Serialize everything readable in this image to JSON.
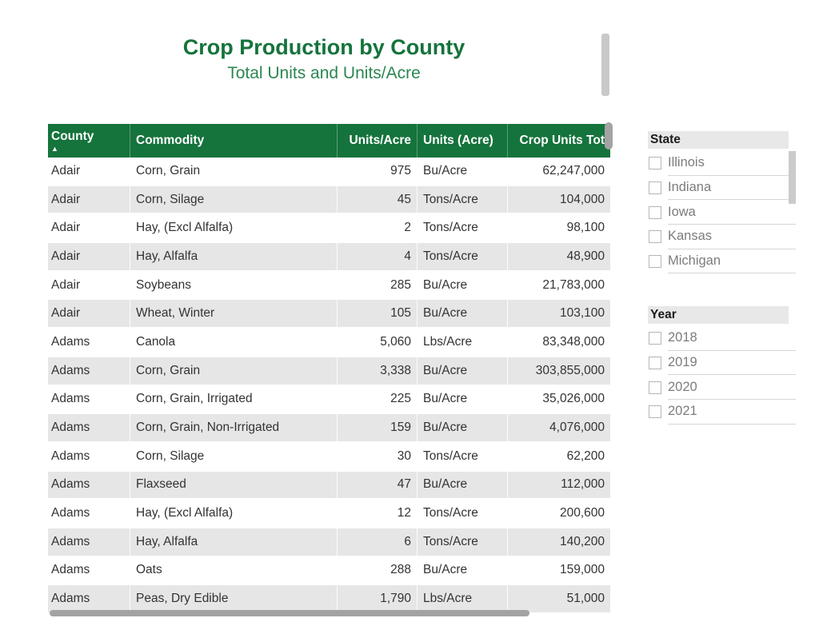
{
  "title": {
    "heading": "Crop Production by County",
    "subheading": "Total Units and Units/Acre"
  },
  "table": {
    "columns": [
      {
        "label": "County",
        "sort": "ascending"
      },
      {
        "label": "Commodity"
      },
      {
        "label": "Units/Acre"
      },
      {
        "label": "Units (Acre)"
      },
      {
        "label": "Crop Units Tot"
      }
    ],
    "rows": [
      [
        "Adair",
        "Corn, Grain",
        "975",
        "Bu/Acre",
        "62,247,000"
      ],
      [
        "Adair",
        "Corn, Silage",
        "45",
        "Tons/Acre",
        "104,000"
      ],
      [
        "Adair",
        "Hay, (Excl Alfalfa)",
        "2",
        "Tons/Acre",
        "98,100"
      ],
      [
        "Adair",
        "Hay, Alfalfa",
        "4",
        "Tons/Acre",
        "48,900"
      ],
      [
        "Adair",
        "Soybeans",
        "285",
        "Bu/Acre",
        "21,783,000"
      ],
      [
        "Adair",
        "Wheat, Winter",
        "105",
        "Bu/Acre",
        "103,100"
      ],
      [
        "Adams",
        "Canola",
        "5,060",
        "Lbs/Acre",
        "83,348,000"
      ],
      [
        "Adams",
        "Corn, Grain",
        "3,338",
        "Bu/Acre",
        "303,855,000"
      ],
      [
        "Adams",
        "Corn, Grain, Irrigated",
        "225",
        "Bu/Acre",
        "35,026,000"
      ],
      [
        "Adams",
        "Corn, Grain, Non-Irrigated",
        "159",
        "Bu/Acre",
        "4,076,000"
      ],
      [
        "Adams",
        "Corn, Silage",
        "30",
        "Tons/Acre",
        "62,200"
      ],
      [
        "Adams",
        "Flaxseed",
        "47",
        "Bu/Acre",
        "112,000"
      ],
      [
        "Adams",
        "Hay, (Excl Alfalfa)",
        "12",
        "Tons/Acre",
        "200,600"
      ],
      [
        "Adams",
        "Hay, Alfalfa",
        "6",
        "Tons/Acre",
        "140,200"
      ],
      [
        "Adams",
        "Oats",
        "288",
        "Bu/Acre",
        "159,000"
      ],
      [
        "Adams",
        "Peas, Dry Edible",
        "1,790",
        "Lbs/Acre",
        "51,000"
      ]
    ]
  },
  "slicers": {
    "state": {
      "title": "State",
      "options": [
        "Illinois",
        "Indiana",
        "Iowa",
        "Kansas",
        "Michigan"
      ],
      "checked": [
        false,
        false,
        false,
        false,
        false
      ]
    },
    "year": {
      "title": "Year",
      "options": [
        "2018",
        "2019",
        "2020",
        "2021"
      ],
      "checked": [
        false,
        false,
        false,
        false
      ]
    }
  },
  "icons": {
    "sort_ascending": "▲"
  },
  "colors": {
    "header_green": "#15733C",
    "title_green": "#15733C",
    "subtitle_green": "#2B8752",
    "row_alt_gray": "#E6E6E6",
    "scrollbar_dark_gray": "#A3A3A3",
    "scrollbar_light_gray": "#C9C9C9",
    "slicer_header_gray": "#E8E8E8",
    "slicer_text_gray": "#7C7C7C"
  }
}
